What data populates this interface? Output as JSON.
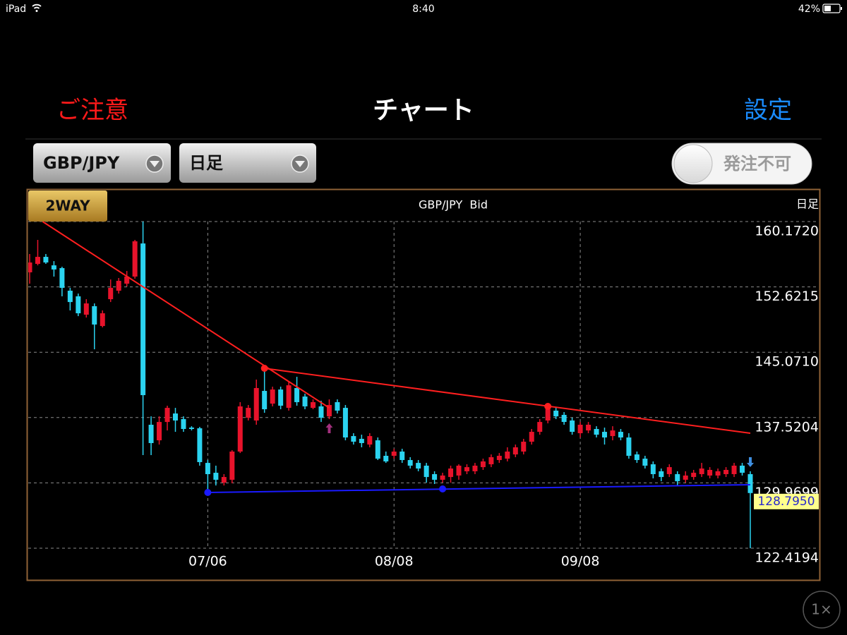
{
  "status_bar": {
    "device": "iPad",
    "time": "8:40",
    "battery": "42%"
  },
  "nav": {
    "left": "ご注意",
    "title": "チャート",
    "right": "設定"
  },
  "toolbar": {
    "pair": "GBP/JPY",
    "period": "日足",
    "order_toggle": "発注不可"
  },
  "zoom": "1×",
  "chart_data": {
    "type": "candlestick",
    "badge": "2WAY",
    "title": "GBP/JPY  Bid",
    "period_label": "日足",
    "categories": [
      null,
      null,
      null,
      null,
      null,
      null,
      null,
      null,
      null,
      null,
      null,
      null,
      null,
      null,
      null,
      null,
      null,
      null,
      null,
      null,
      null,
      null,
      "07/06",
      null,
      null,
      null,
      null,
      null,
      null,
      null,
      null,
      null,
      null,
      null,
      null,
      null,
      null,
      null,
      null,
      null,
      null,
      null,
      null,
      null,
      null,
      "08/08",
      null,
      null,
      null,
      null,
      null,
      null,
      null,
      null,
      null,
      null,
      null,
      null,
      null,
      null,
      null,
      null,
      null,
      null,
      null,
      null,
      null,
      null,
      "09/08",
      null,
      null,
      null,
      null,
      null,
      null,
      null,
      null,
      null,
      null,
      null,
      null,
      null,
      null,
      null,
      null,
      null,
      null,
      null,
      null,
      null
    ],
    "open": [
      154.3,
      155.28,
      156.09,
      155.11,
      154.79,
      152.18,
      151.53,
      149.41,
      150.39,
      148.1,
      151.2,
      152.18,
      152.99,
      153.81,
      157.64,
      136.69,
      134.89,
      137.01,
      137.99,
      137.34,
      136.36,
      136.28,
      132.28,
      131.14,
      130.0,
      130.33,
      133.59,
      137.5,
      137.18,
      140.6,
      139.13,
      140.76,
      138.64,
      140.93,
      139.95,
      138.64,
      138.81,
      137.66,
      139.3,
      138.64,
      135.38,
      135.06,
      134.4,
      134.89,
      133.1,
      133.1,
      133.59,
      132.61,
      132.28,
      131.96,
      130.98,
      130.33,
      130.65,
      130.82,
      131.31,
      131.31,
      131.79,
      132.12,
      132.61,
      132.77,
      133.26,
      133.59,
      134.73,
      135.87,
      137.18,
      138.32,
      137.83,
      137.18,
      135.71,
      136.03,
      136.2,
      135.87,
      135.38,
      135.87,
      135.22,
      133.26,
      132.77,
      132.12,
      131.31,
      130.98,
      130.98,
      130.33,
      130.65,
      130.98,
      130.82,
      130.82,
      130.98,
      130.98,
      131.96,
      130.98
    ],
    "high": [
      156.42,
      158.05,
      156.42,
      155.6,
      154.95,
      152.51,
      151.85,
      151.2,
      150.71,
      149.9,
      153.48,
      153.65,
      154.46,
      158.05,
      160.17,
      137.66,
      137.66,
      138.89,
      138.64,
      137.66,
      136.52,
      136.44,
      132.61,
      131.96,
      130.98,
      133.75,
      139.3,
      138.97,
      141.91,
      143.05,
      141.09,
      141.09,
      141.74,
      142.23,
      140.27,
      139.62,
      139.46,
      139.62,
      139.62,
      138.97,
      135.71,
      135.54,
      135.71,
      135.22,
      133.59,
      133.91,
      133.91,
      132.94,
      132.61,
      132.28,
      131.31,
      131.14,
      131.96,
      132.12,
      132.12,
      132.28,
      132.77,
      133.26,
      133.42,
      134.08,
      134.4,
      135.06,
      136.2,
      137.34,
      138.81,
      138.64,
      138.15,
      137.5,
      137.01,
      137.01,
      136.52,
      136.36,
      136.52,
      136.2,
      135.71,
      133.59,
      133.1,
      132.45,
      131.63,
      132.12,
      131.31,
      131.31,
      131.47,
      132.28,
      131.79,
      131.63,
      131.79,
      132.28,
      132.28,
      131.31
    ],
    "low": [
      152.99,
      155.11,
      155.28,
      153.81,
      151.53,
      149.9,
      149.24,
      149.08,
      145.41,
      147.94,
      150.87,
      151.85,
      152.67,
      153.57,
      133.18,
      133.18,
      134.4,
      136.03,
      135.87,
      135.87,
      136.03,
      131.96,
      129.1,
      129.67,
      129.67,
      129.92,
      133.42,
      137.18,
      136.69,
      138.07,
      138.81,
      138.48,
      138.32,
      138.89,
      138.48,
      138.48,
      137.01,
      137.34,
      137.99,
      134.89,
      134.4,
      134.08,
      134.08,
      132.61,
      132.28,
      132.77,
      132.28,
      131.63,
      131.31,
      130.0,
      129.84,
      130.0,
      130.0,
      130.33,
      130.98,
      130.98,
      131.47,
      131.79,
      132.28,
      132.45,
      132.94,
      133.26,
      134.4,
      135.54,
      136.85,
      137.34,
      136.69,
      135.54,
      135.22,
      135.71,
      135.22,
      134.4,
      134.89,
      134.89,
      132.77,
      132.28,
      131.63,
      130.49,
      130.16,
      130.65,
      129.67,
      130.0,
      130.33,
      130.65,
      130.49,
      130.49,
      130.65,
      130.65,
      130.82,
      122.42
    ],
    "close": [
      155.44,
      156.09,
      155.44,
      154.63,
      152.51,
      150.87,
      149.57,
      150.71,
      148.27,
      149.57,
      152.51,
      153.32,
      153.81,
      157.89,
      140.11,
      134.57,
      137.01,
      138.64,
      137.18,
      136.2,
      136.2,
      132.37,
      130.98,
      130.33,
      130.65,
      133.59,
      138.81,
      138.64,
      140.93,
      138.48,
      140.76,
      138.89,
      141.25,
      139.3,
      138.81,
      139.3,
      137.5,
      138.97,
      138.32,
      135.22,
      134.73,
      134.57,
      135.38,
      132.77,
      132.45,
      133.59,
      132.61,
      131.96,
      131.63,
      130.65,
      130.33,
      130.82,
      131.63,
      131.96,
      131.79,
      131.96,
      132.45,
      132.94,
      133.1,
      133.59,
      134.08,
      134.73,
      135.87,
      137.01,
      138.48,
      137.66,
      137.01,
      135.87,
      136.69,
      136.69,
      135.54,
      135.22,
      136.03,
      135.22,
      133.1,
      132.61,
      131.96,
      130.98,
      130.65,
      131.79,
      130.16,
      130.82,
      131.14,
      131.63,
      131.47,
      131.31,
      131.47,
      131.96,
      131.14,
      128.795
    ],
    "up_color": "#e8132b",
    "down_color": "#2bd3f0",
    "ylim": [
      122.4194,
      160.172
    ],
    "yticks": [
      122.4194,
      129.9699,
      137.5204,
      {
        "value": 145.071,
        "label": "145.0710"
      },
      152.6215,
      {
        "value": 160.172,
        "label": "160.1720"
      }
    ],
    "grid": true,
    "last_price": {
      "value": 128.795,
      "label": "128.7950"
    },
    "trendlines": [
      {
        "color": "#ff1f1f",
        "x": [
          1.6,
          37
        ],
        "values": [
          160.17,
          138.64
        ]
      },
      {
        "color": "#ff1f1f",
        "x": [
          29,
          89
        ],
        "values": [
          143.21,
          135.71
        ],
        "anchor_x": [
          29,
          64
        ],
        "anchor_values": [
          143.21,
          138.81
        ]
      },
      {
        "color": "#1a1aff",
        "x": [
          22,
          89
        ],
        "values": [
          128.86,
          129.76
        ],
        "anchor_x": [
          22,
          51
        ],
        "anchor_values": [
          128.86,
          129.27
        ]
      }
    ],
    "signals": [
      {
        "index": 37,
        "direction": "up",
        "color": "#a3307e"
      },
      {
        "index": 89,
        "direction": "down",
        "color": "#3f8fe0"
      }
    ]
  }
}
